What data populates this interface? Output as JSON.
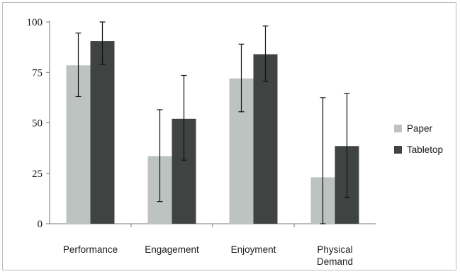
{
  "chart_data": {
    "type": "bar",
    "categories": [
      "Performance",
      "Engagement",
      "Enjoyment",
      "Physical Demand"
    ],
    "series": [
      {
        "name": "Paper",
        "values": [
          78.5,
          33.5,
          72,
          23
        ],
        "error_low": [
          63,
          11,
          55.5,
          0
        ],
        "error_high": [
          94.5,
          56.5,
          89,
          62.5
        ],
        "color": "#bcc3c1"
      },
      {
        "name": "Tabletop",
        "values": [
          90.5,
          52,
          84,
          38.5
        ],
        "error_low": [
          79,
          31.5,
          70.5,
          13
        ],
        "error_high": [
          100,
          73.5,
          98,
          64.5
        ],
        "color": "#3f4442"
      }
    ],
    "yticks": [
      0,
      25,
      50,
      75,
      100
    ],
    "ylim": [
      0,
      100
    ],
    "title": "",
    "xlabel": "",
    "ylabel": "",
    "grid": false,
    "legend_position": "right"
  }
}
